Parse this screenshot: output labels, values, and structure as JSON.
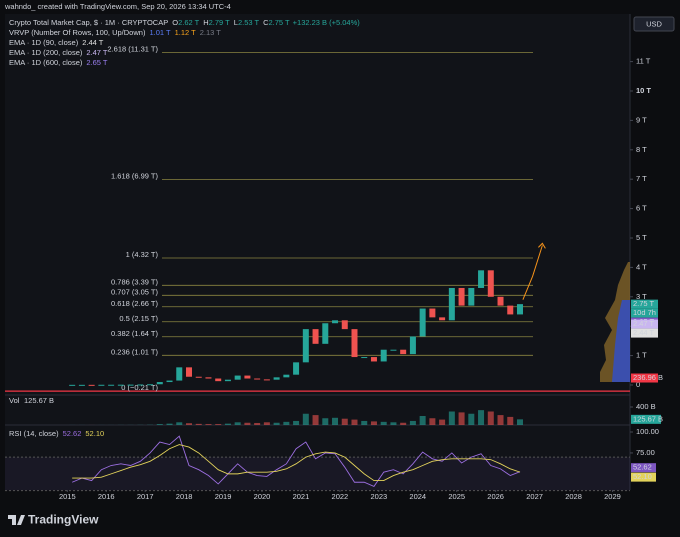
{
  "header": {
    "credit": "wahndo_ created with TradingView.com, Sep 20, 2026 13:34 UTC-4",
    "currency": "USD"
  },
  "legend": {
    "symbol": "Crypto Total Market Cap, $ · 1M · CRYPTOCAP",
    "ohlc": [
      {
        "key": "O",
        "value": "2.62 T"
      },
      {
        "key": "H",
        "value": "2.79 T"
      },
      {
        "key": "L",
        "value": "2.53 T"
      },
      {
        "key": "C",
        "value": "2.75 T"
      }
    ],
    "change": "+132.23 B (+5.04%)",
    "vrvp": {
      "name": "VRVP (Number Of Rows, 100, Up/Down)",
      "values": [
        "1.01 T",
        "1.12 T",
        "2.13 T"
      ]
    },
    "emas": [
      {
        "name": "EMA · 1D (90, close)",
        "value": "2.44 T",
        "color": "#e0e0e0"
      },
      {
        "name": "EMA · 1D (200, close)",
        "value": "2.47 T",
        "color": "#c9b6f0"
      },
      {
        "name": "EMA · 1D (600, close)",
        "value": "2.65 T",
        "color": "#9b7ff0"
      }
    ]
  },
  "chart_data": {
    "type": "candlestick",
    "x": [
      2015.125,
      2015.375,
      2015.625,
      2015.875,
      2016.125,
      2016.375,
      2016.625,
      2016.875,
      2017.125,
      2017.375,
      2017.625,
      2017.875,
      2018.125,
      2018.375,
      2018.625,
      2018.875,
      2019.125,
      2019.375,
      2019.625,
      2019.875,
      2020.125,
      2020.375,
      2020.625,
      2020.875,
      2021.125,
      2021.375,
      2021.625,
      2021.875,
      2022.125,
      2022.375,
      2022.625,
      2022.875,
      2023.125,
      2023.375,
      2023.625,
      2023.875,
      2024.125,
      2024.375,
      2024.625,
      2024.875,
      2025.125,
      2025.375,
      2025.625,
      2025.875,
      2026.125,
      2026.375,
      2026.625
    ],
    "values": [
      0.005,
      0.005,
      0.004,
      0.007,
      0.008,
      0.01,
      0.012,
      0.017,
      0.025,
      0.1,
      0.15,
      0.6,
      0.28,
      0.26,
      0.22,
      0.13,
      0.18,
      0.32,
      0.22,
      0.19,
      0.18,
      0.26,
      0.35,
      0.77,
      1.9,
      1.4,
      2.1,
      2.2,
      1.9,
      0.95,
      0.95,
      0.8,
      1.2,
      1.2,
      1.05,
      1.65,
      2.6,
      2.3,
      2.2,
      3.3,
      2.7,
      3.3,
      3.9,
      3.0,
      2.7,
      2.4,
      2.75
    ],
    "up_color": "#26a69a",
    "down_color": "#ef5350",
    "xlim": [
      2013.4,
      2029.45
    ],
    "xticks": [
      2015,
      2016,
      2017,
      2018,
      2019,
      2020,
      2021,
      2022,
      2023,
      2024,
      2025,
      2026,
      2027,
      2028,
      2029
    ],
    "ylim": [
      -0.3,
      12
    ],
    "yticks": [
      {
        "value": 0,
        "label": "0"
      },
      {
        "value": 1,
        "label": "1 T"
      },
      {
        "value": 2,
        "label": "2 T"
      },
      {
        "value": 3,
        "label": "3 T"
      },
      {
        "value": 4,
        "label": "4 T"
      },
      {
        "value": 5,
        "label": "5 T"
      },
      {
        "value": 6,
        "label": "6 T"
      },
      {
        "value": 7,
        "label": "7 T"
      },
      {
        "value": 8,
        "label": "8 T"
      },
      {
        "value": 9,
        "label": "9 T"
      },
      {
        "value": 10,
        "label": "10 T"
      },
      {
        "value": 11,
        "label": "11 T"
      }
    ],
    "fib_levels": [
      {
        "value": 11.31,
        "label": "2.618 (11.31 T)"
      },
      {
        "value": 6.99,
        "label": "1.618 (6.99 T)"
      },
      {
        "value": 4.32,
        "label": "1 (4.32 T)"
      },
      {
        "value": 3.39,
        "label": "0.786 (3.39 T)"
      },
      {
        "value": 3.05,
        "label": "0.707 (3.05 T)"
      },
      {
        "value": 2.66,
        "label": "0.618 (2.66 T)"
      },
      {
        "value": 2.15,
        "label": "0.5 (2.15 T)"
      },
      {
        "value": 1.64,
        "label": "0.382 (1.64 T)"
      },
      {
        "value": 1.01,
        "label": "0.236 (1.01 T)"
      },
      {
        "value": -0.21,
        "label": "0 (−0.21 T)"
      }
    ],
    "fib_color": "#8a8540",
    "fib_zero_color": "#f23645",
    "projection": {
      "x": [
        2026.7,
        2026.95,
        2027.2
      ],
      "values": [
        2.9,
        3.7,
        4.75
      ],
      "color": "#f7931a"
    },
    "price_markers": [
      {
        "value": 2.75,
        "label": "2.75 T",
        "color": "#26a69a",
        "sub": "10d 7h"
      },
      {
        "value": 2.65,
        "label": "2.65 T",
        "color": "#7e57c2"
      },
      {
        "value": 2.47,
        "label": "2.47 T",
        "color": "#c9b6f0"
      },
      {
        "value": 2.44,
        "label": "2.44 T",
        "color": "#e0e0e0"
      },
      {
        "value": 0.23696,
        "label": "236.96 B",
        "color": "#f23645"
      }
    ],
    "volume": {
      "title": "Vol",
      "last": "125.67 B",
      "values": [
        1,
        1,
        1,
        1,
        1,
        2,
        2,
        3,
        5,
        20,
        30,
        60,
        40,
        25,
        20,
        20,
        30,
        60,
        50,
        45,
        60,
        50,
        70,
        90,
        250,
        220,
        150,
        160,
        140,
        120,
        90,
        80,
        70,
        60,
        50,
        90,
        200,
        150,
        120,
        300,
        280,
        250,
        330,
        300,
        220,
        180,
        125.67
      ],
      "ylim": [
        0,
        400
      ],
      "yticks": [
        {
          "value": 400,
          "label": "400 B"
        }
      ],
      "marker": {
        "value": 125.67,
        "label": "125.67 B"
      }
    },
    "rsi": {
      "title": "RSI (14, close)",
      "last": "52.62",
      "ma_last": "52.10",
      "values": [
        40,
        45,
        42,
        55,
        60,
        62,
        60,
        65,
        75,
        88,
        85,
        95,
        60,
        55,
        48,
        38,
        50,
        62,
        52,
        48,
        47,
        55,
        62,
        80,
        88,
        68,
        75,
        74,
        58,
        40,
        40,
        35,
        52,
        55,
        50,
        62,
        76,
        68,
        65,
        75,
        63,
        70,
        74,
        60,
        56,
        48,
        52.62
      ],
      "ma": [
        45,
        45,
        45,
        46,
        50,
        54,
        58,
        61,
        65,
        72,
        80,
        85,
        82,
        75,
        65,
        55,
        50,
        50,
        52,
        52,
        52,
        53,
        56,
        62,
        70,
        74,
        76,
        75,
        70,
        60,
        50,
        42,
        42,
        48,
        52,
        55,
        60,
        65,
        67,
        68,
        68,
        68,
        68,
        67,
        62,
        56,
        52.1
      ],
      "color": "#9b6ee0",
      "ma_color": "#e3d35b",
      "ylim": [
        20,
        100
      ],
      "yticks": [
        {
          "value": 100,
          "label": "100.00"
        },
        {
          "value": 75,
          "label": "75.00"
        }
      ],
      "markers": [
        {
          "value": 52.62,
          "label": "52.62",
          "color": "#7e57c2"
        },
        {
          "value": 52.1,
          "label": "52.10",
          "color": "#e3d35b"
        }
      ]
    }
  },
  "footer": {
    "brand": "TradingView"
  }
}
